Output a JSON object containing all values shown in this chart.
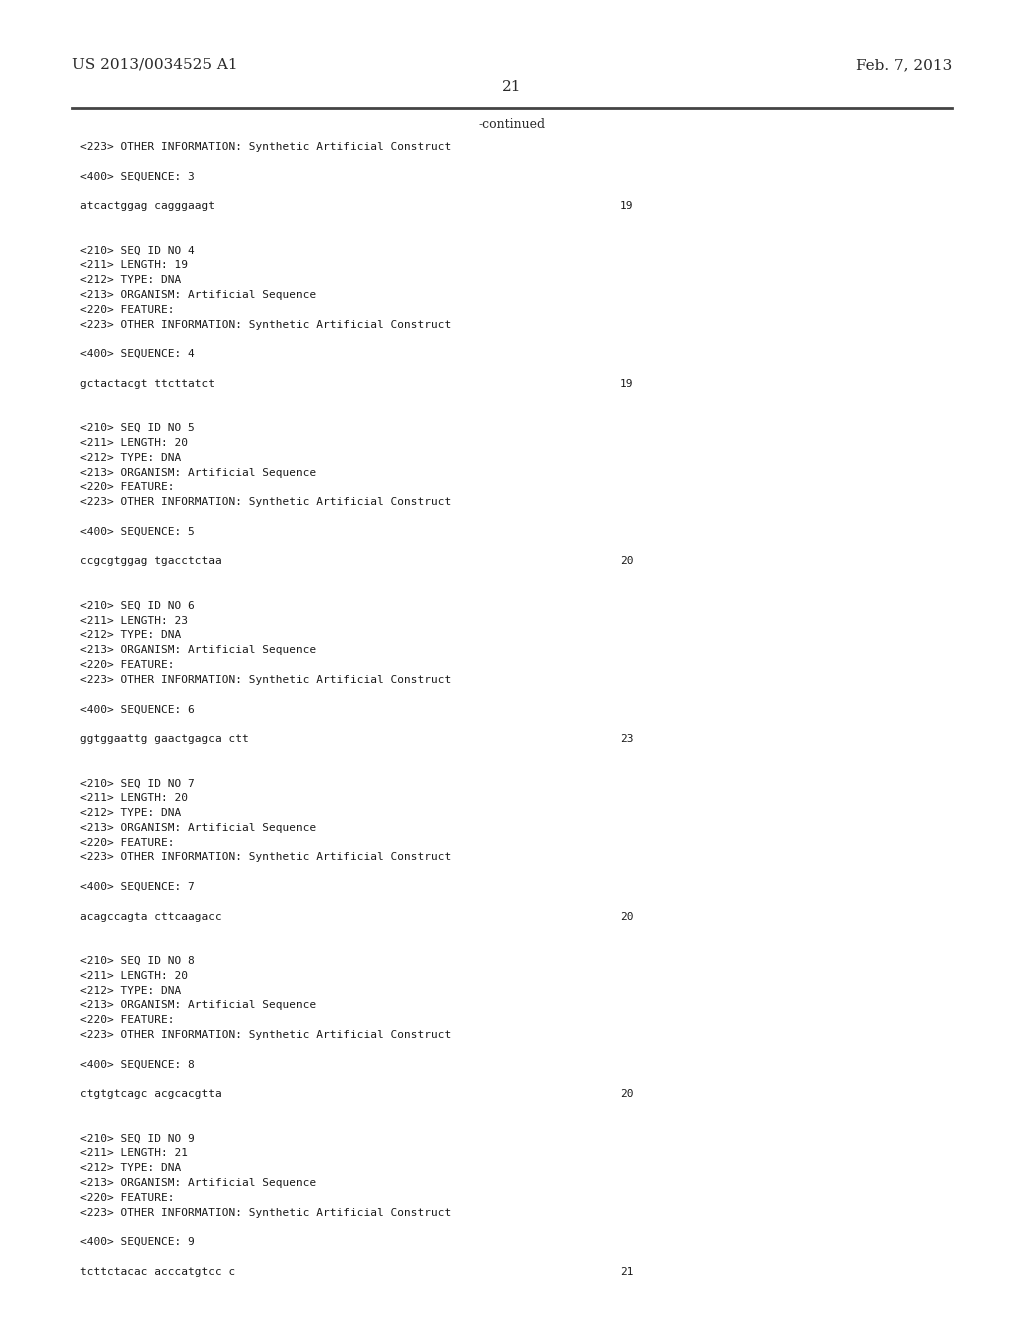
{
  "background_color": "#ffffff",
  "header_left": "US 2013/0034525 A1",
  "header_right": "Feb. 7, 2013",
  "page_number": "21",
  "continued_label": "-continued",
  "content_lines": [
    {
      "text": "<223> OTHER INFORMATION: Synthetic Artificial Construct",
      "num": null
    },
    {
      "text": "",
      "num": null
    },
    {
      "text": "<400> SEQUENCE: 3",
      "num": null
    },
    {
      "text": "",
      "num": null
    },
    {
      "text": "atcactggag cagggaagt",
      "num": "19"
    },
    {
      "text": "",
      "num": null
    },
    {
      "text": "",
      "num": null
    },
    {
      "text": "<210> SEQ ID NO 4",
      "num": null
    },
    {
      "text": "<211> LENGTH: 19",
      "num": null
    },
    {
      "text": "<212> TYPE: DNA",
      "num": null
    },
    {
      "text": "<213> ORGANISM: Artificial Sequence",
      "num": null
    },
    {
      "text": "<220> FEATURE:",
      "num": null
    },
    {
      "text": "<223> OTHER INFORMATION: Synthetic Artificial Construct",
      "num": null
    },
    {
      "text": "",
      "num": null
    },
    {
      "text": "<400> SEQUENCE: 4",
      "num": null
    },
    {
      "text": "",
      "num": null
    },
    {
      "text": "gctactacgt ttcttatct",
      "num": "19"
    },
    {
      "text": "",
      "num": null
    },
    {
      "text": "",
      "num": null
    },
    {
      "text": "<210> SEQ ID NO 5",
      "num": null
    },
    {
      "text": "<211> LENGTH: 20",
      "num": null
    },
    {
      "text": "<212> TYPE: DNA",
      "num": null
    },
    {
      "text": "<213> ORGANISM: Artificial Sequence",
      "num": null
    },
    {
      "text": "<220> FEATURE:",
      "num": null
    },
    {
      "text": "<223> OTHER INFORMATION: Synthetic Artificial Construct",
      "num": null
    },
    {
      "text": "",
      "num": null
    },
    {
      "text": "<400> SEQUENCE: 5",
      "num": null
    },
    {
      "text": "",
      "num": null
    },
    {
      "text": "ccgcgtggag tgacctctaa",
      "num": "20"
    },
    {
      "text": "",
      "num": null
    },
    {
      "text": "",
      "num": null
    },
    {
      "text": "<210> SEQ ID NO 6",
      "num": null
    },
    {
      "text": "<211> LENGTH: 23",
      "num": null
    },
    {
      "text": "<212> TYPE: DNA",
      "num": null
    },
    {
      "text": "<213> ORGANISM: Artificial Sequence",
      "num": null
    },
    {
      "text": "<220> FEATURE:",
      "num": null
    },
    {
      "text": "<223> OTHER INFORMATION: Synthetic Artificial Construct",
      "num": null
    },
    {
      "text": "",
      "num": null
    },
    {
      "text": "<400> SEQUENCE: 6",
      "num": null
    },
    {
      "text": "",
      "num": null
    },
    {
      "text": "ggtggaattg gaactgagca ctt",
      "num": "23"
    },
    {
      "text": "",
      "num": null
    },
    {
      "text": "",
      "num": null
    },
    {
      "text": "<210> SEQ ID NO 7",
      "num": null
    },
    {
      "text": "<211> LENGTH: 20",
      "num": null
    },
    {
      "text": "<212> TYPE: DNA",
      "num": null
    },
    {
      "text": "<213> ORGANISM: Artificial Sequence",
      "num": null
    },
    {
      "text": "<220> FEATURE:",
      "num": null
    },
    {
      "text": "<223> OTHER INFORMATION: Synthetic Artificial Construct",
      "num": null
    },
    {
      "text": "",
      "num": null
    },
    {
      "text": "<400> SEQUENCE: 7",
      "num": null
    },
    {
      "text": "",
      "num": null
    },
    {
      "text": "acagccagta cttcaagacc",
      "num": "20"
    },
    {
      "text": "",
      "num": null
    },
    {
      "text": "",
      "num": null
    },
    {
      "text": "<210> SEQ ID NO 8",
      "num": null
    },
    {
      "text": "<211> LENGTH: 20",
      "num": null
    },
    {
      "text": "<212> TYPE: DNA",
      "num": null
    },
    {
      "text": "<213> ORGANISM: Artificial Sequence",
      "num": null
    },
    {
      "text": "<220> FEATURE:",
      "num": null
    },
    {
      "text": "<223> OTHER INFORMATION: Synthetic Artificial Construct",
      "num": null
    },
    {
      "text": "",
      "num": null
    },
    {
      "text": "<400> SEQUENCE: 8",
      "num": null
    },
    {
      "text": "",
      "num": null
    },
    {
      "text": "ctgtgtcagc acgcacgtta",
      "num": "20"
    },
    {
      "text": "",
      "num": null
    },
    {
      "text": "",
      "num": null
    },
    {
      "text": "<210> SEQ ID NO 9",
      "num": null
    },
    {
      "text": "<211> LENGTH: 21",
      "num": null
    },
    {
      "text": "<212> TYPE: DNA",
      "num": null
    },
    {
      "text": "<213> ORGANISM: Artificial Sequence",
      "num": null
    },
    {
      "text": "<220> FEATURE:",
      "num": null
    },
    {
      "text": "<223> OTHER INFORMATION: Synthetic Artificial Construct",
      "num": null
    },
    {
      "text": "",
      "num": null
    },
    {
      "text": "<400> SEQUENCE: 9",
      "num": null
    },
    {
      "text": "",
      "num": null
    },
    {
      "text": "tcttctacac acccatgtcc c",
      "num": "21"
    }
  ]
}
